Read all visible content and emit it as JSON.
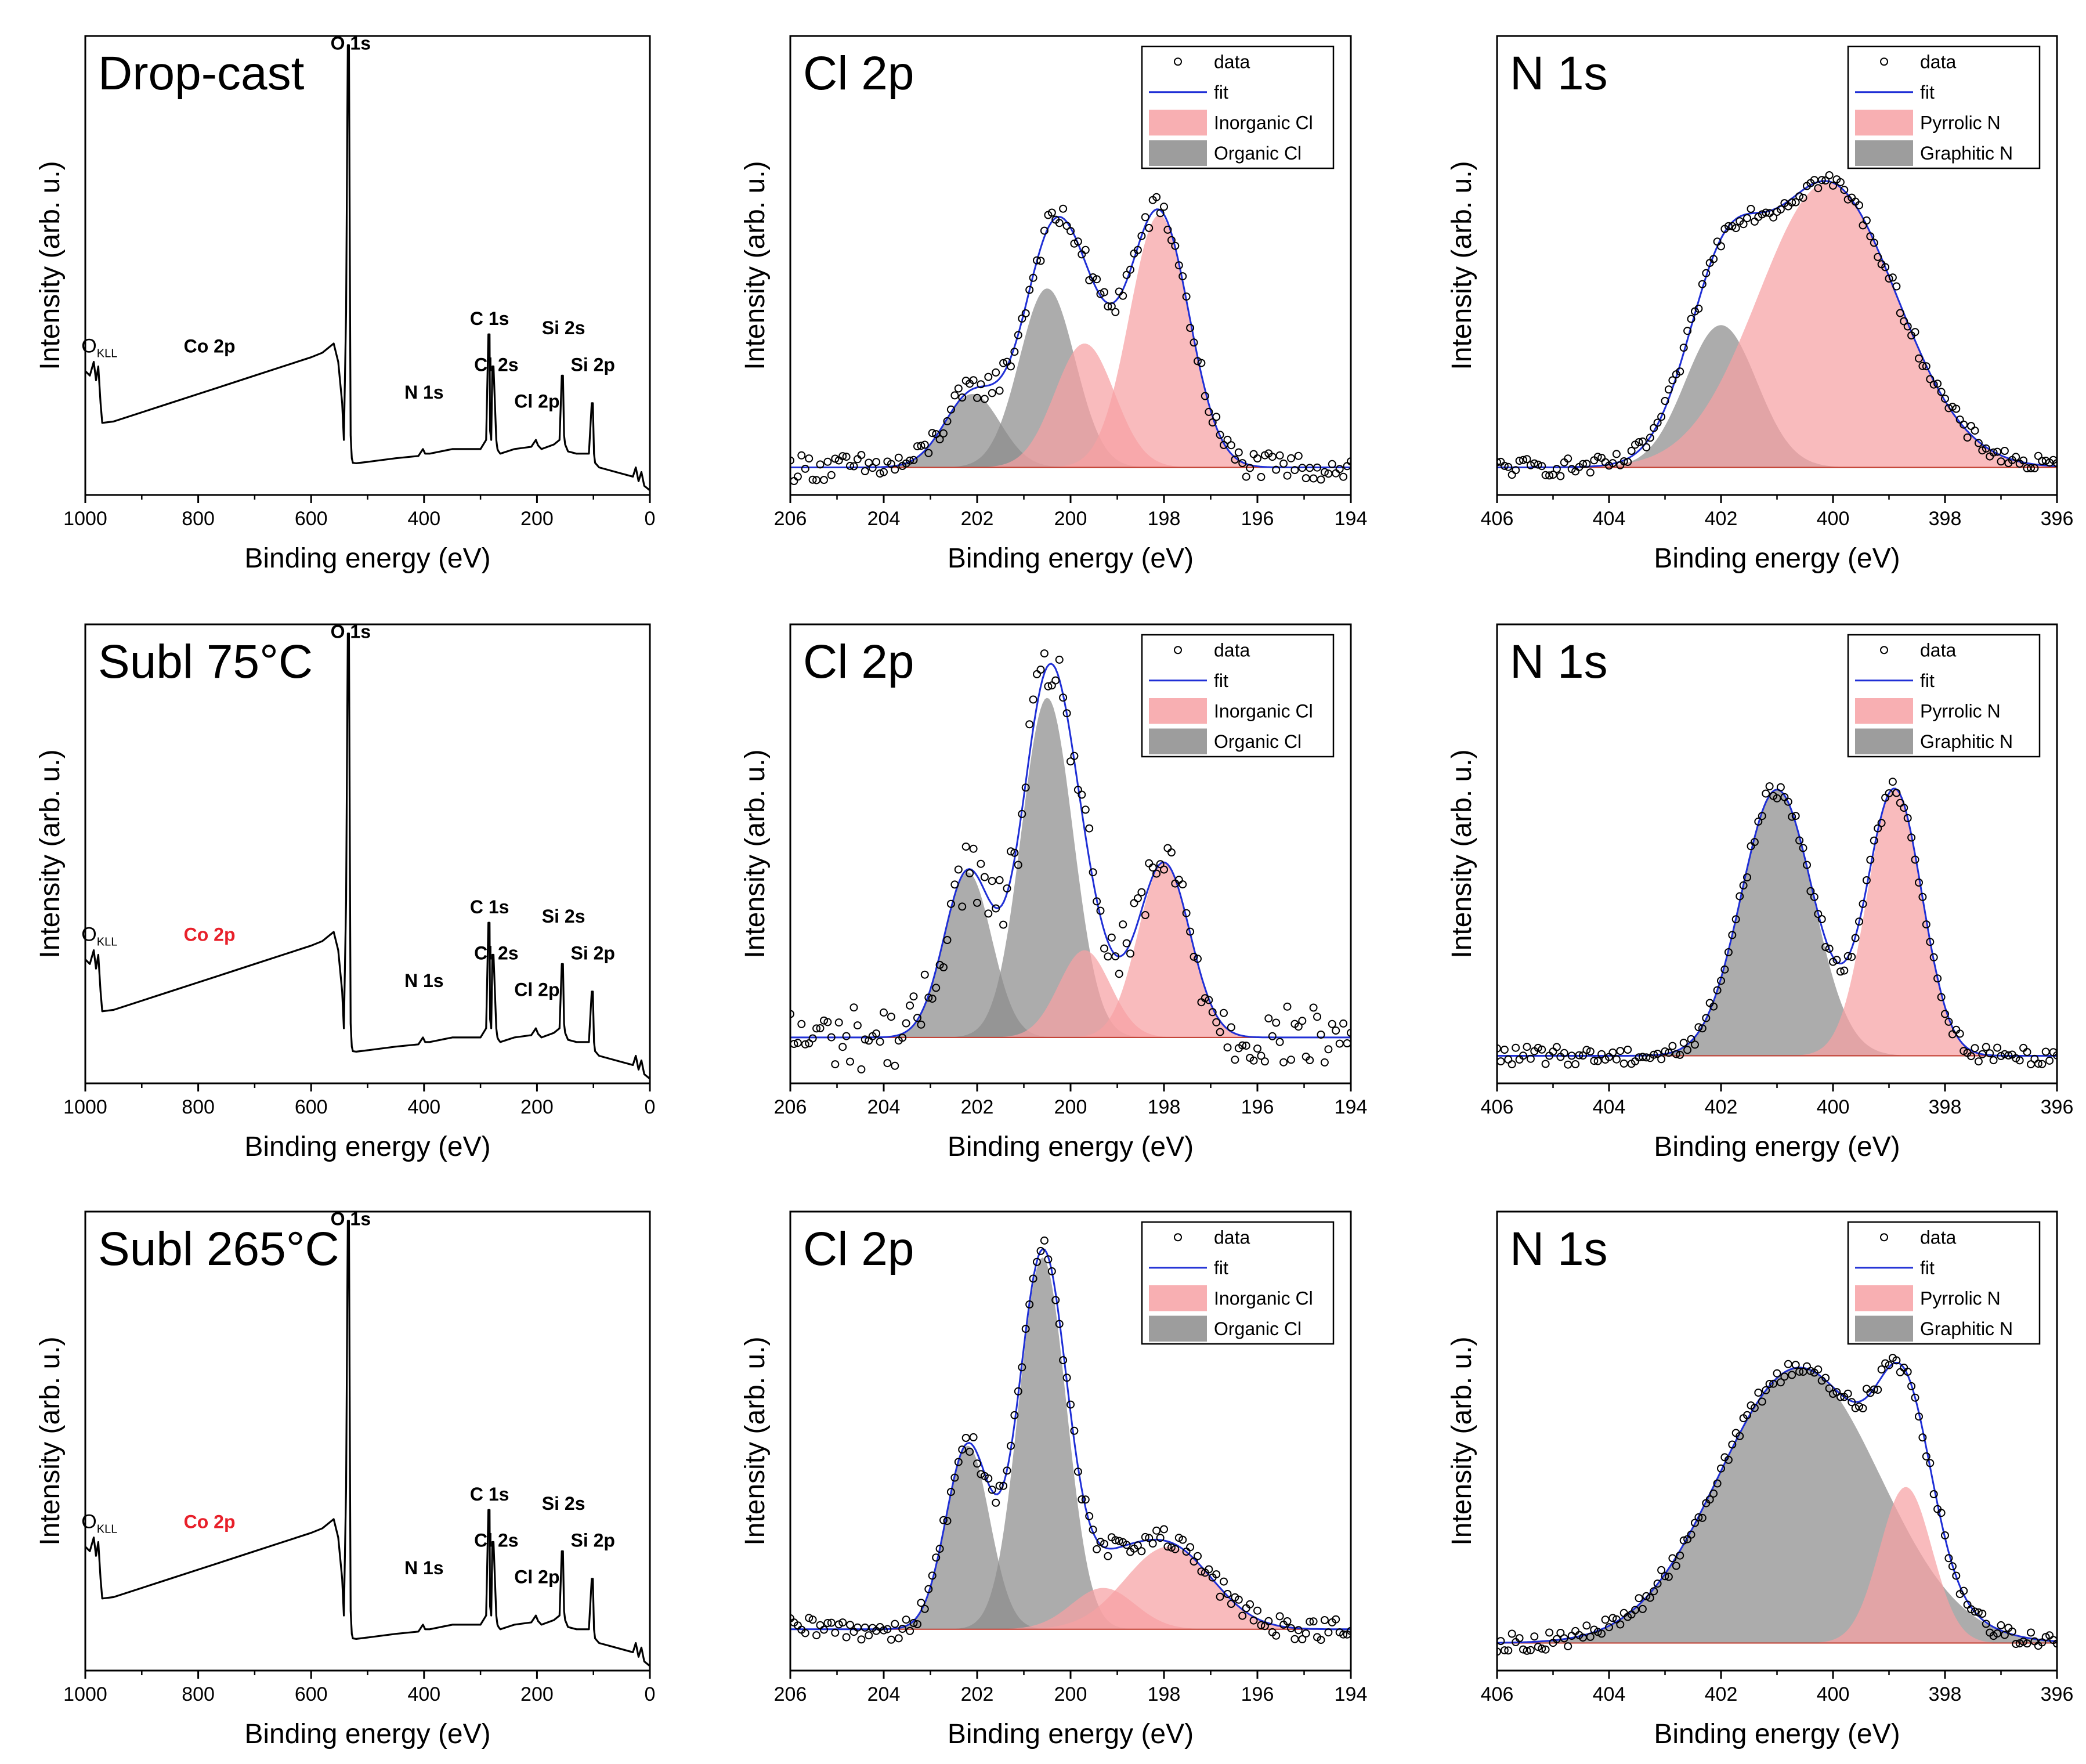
{
  "figure": {
    "background": "#ffffff",
    "colors": {
      "data_marker": "#000000",
      "fit_line": "#1f2fd6",
      "inorganic_fill": "#f7a1a4",
      "organic_fill": "#8c8c8c",
      "pyrrolic_fill": "#f7a1a4",
      "graphitic_fill": "#8c8c8c",
      "red_label": "#e8202a"
    }
  },
  "chart_data": [
    {
      "id": "survey-dropcast",
      "type": "line",
      "panel": "survey",
      "title": "Drop-cast",
      "xlabel": "Binding energy (eV)",
      "ylabel": "Intensity (arb. u.)",
      "xlim": [
        1000,
        0
      ],
      "ylim": [
        0,
        1
      ],
      "reversed_x": true,
      "xticks": [
        1000,
        800,
        600,
        400,
        200,
        0
      ],
      "curve": {
        "x": [
          1000,
          992,
          985,
          981,
          977,
          973,
          970,
          950,
          900,
          850,
          800,
          750,
          700,
          650,
          600,
          580,
          565,
          560,
          552,
          545,
          542,
          538,
          535,
          533,
          531,
          530,
          528,
          526,
          520,
          500,
          450,
          410,
          402,
          398,
          390,
          350,
          300,
          290,
          286,
          284,
          283,
          281,
          279,
          277,
          272,
          270,
          268,
          265,
          240,
          210,
          202,
          198,
          192,
          170,
          160,
          156,
          154,
          152,
          150,
          145,
          130,
          108,
          103,
          101,
          99,
          97,
          90,
          60,
          30,
          25,
          20,
          15,
          10,
          5,
          0
        ],
        "y": [
          0.27,
          0.26,
          0.29,
          0.25,
          0.28,
          0.2,
          0.157,
          0.16,
          0.18,
          0.2,
          0.22,
          0.24,
          0.26,
          0.28,
          0.3,
          0.31,
          0.325,
          0.33,
          0.29,
          0.2,
          0.12,
          0.4,
          0.98,
          0.98,
          0.4,
          0.13,
          0.08,
          0.07,
          0.069,
          0.072,
          0.08,
          0.085,
          0.1,
          0.09,
          0.09,
          0.1,
          0.1,
          0.12,
          0.35,
          0.35,
          0.14,
          0.12,
          0.28,
          0.28,
          0.12,
          0.1,
          0.095,
          0.09,
          0.1,
          0.105,
          0.12,
          0.108,
          0.1,
          0.11,
          0.12,
          0.26,
          0.26,
          0.13,
          0.11,
          0.095,
          0.09,
          0.09,
          0.2,
          0.2,
          0.09,
          0.07,
          0.06,
          0.05,
          0.04,
          0.06,
          0.03,
          0.05,
          0.02,
          0.015,
          0.01
        ]
      },
      "annotations": [
        {
          "text": "O 1s",
          "x": 530,
          "y": 0.96,
          "color": "#000000"
        },
        {
          "text": "C 1s",
          "x": 284,
          "y": 0.36,
          "color": "#000000"
        },
        {
          "text": "Cl 2s",
          "x": 272,
          "y": 0.26,
          "color": "#000000"
        },
        {
          "text": "Cl 2p",
          "x": 200,
          "y": 0.18,
          "color": "#000000"
        },
        {
          "text": "Si 2s",
          "x": 153,
          "y": 0.34,
          "color": "#000000"
        },
        {
          "text": "Si 2p",
          "x": 101,
          "y": 0.26,
          "color": "#000000"
        },
        {
          "text": "N 1s",
          "x": 400,
          "y": 0.2,
          "color": "#000000"
        },
        {
          "text": "Co 2p",
          "x": 780,
          "y": 0.3,
          "color": "#000000"
        },
        {
          "text": "O",
          "sub": "KLL",
          "x": 975,
          "y": 0.3,
          "color": "#000000"
        }
      ]
    },
    {
      "id": "cl2p-dropcast",
      "type": "scatter",
      "panel": "cl2p",
      "title": "Cl 2p",
      "xlabel": "Binding energy (eV)",
      "ylabel": "Intensity (arb. u.)",
      "xlim": [
        206,
        194
      ],
      "ylim": [
        0,
        1
      ],
      "reversed_x": true,
      "xticks": [
        206,
        204,
        202,
        200,
        198,
        196,
        194
      ],
      "baseline": 0.06,
      "components": [
        {
          "name": "Organic Cl",
          "peaks": [
            {
              "center": 202.1,
              "amp": 0.16,
              "fwhm": 1.4
            },
            {
              "center": 200.5,
              "amp": 0.39,
              "fwhm": 1.4
            }
          ]
        },
        {
          "name": "Inorganic Cl",
          "peaks": [
            {
              "center": 199.7,
              "amp": 0.27,
              "fwhm": 1.5
            },
            {
              "center": 198.1,
              "amp": 0.55,
              "fwhm": 1.5
            }
          ]
        }
      ],
      "data_noise": 0.03,
      "legend": {
        "position": "top-right",
        "entries": [
          "data",
          "fit",
          "Inorganic Cl",
          "Organic Cl"
        ]
      }
    },
    {
      "id": "n1s-dropcast",
      "type": "scatter",
      "panel": "n1s",
      "title": "N 1s",
      "xlabel": "Binding energy (eV)",
      "ylabel": "Intensity (arb. u.)",
      "xlim": [
        406,
        396
      ],
      "ylim": [
        0,
        1
      ],
      "reversed_x": true,
      "xticks": [
        406,
        404,
        402,
        400,
        398,
        396
      ],
      "baseline": 0.06,
      "components": [
        {
          "name": "Graphitic N",
          "peaks": [
            {
              "center": 402.0,
              "amp": 0.31,
              "fwhm": 1.5
            }
          ]
        },
        {
          "name": "Pyrrolic N",
          "peaks": [
            {
              "center": 400.1,
              "amp": 0.62,
              "fwhm": 2.9
            }
          ]
        }
      ],
      "data_noise": 0.02,
      "legend": {
        "position": "top-right",
        "entries": [
          "data",
          "fit",
          "Pyrrolic N",
          "Graphitic N"
        ]
      }
    },
    {
      "id": "survey-subl75",
      "type": "line",
      "panel": "survey",
      "title": "Subl 75°C",
      "xlabel": "Binding energy (eV)",
      "ylabel": "Intensity (arb. u.)",
      "xlim": [
        1000,
        0
      ],
      "ylim": [
        0,
        1
      ],
      "reversed_x": true,
      "xticks": [
        1000,
        800,
        600,
        400,
        200,
        0
      ],
      "curve": {
        "x": [
          1000,
          992,
          985,
          981,
          977,
          973,
          970,
          950,
          900,
          850,
          800,
          750,
          700,
          650,
          600,
          580,
          565,
          560,
          552,
          545,
          542,
          538,
          535,
          533,
          531,
          530,
          528,
          526,
          520,
          500,
          450,
          410,
          402,
          398,
          390,
          350,
          300,
          290,
          286,
          284,
          283,
          281,
          279,
          277,
          272,
          270,
          268,
          265,
          240,
          210,
          202,
          198,
          192,
          170,
          160,
          156,
          154,
          152,
          150,
          145,
          130,
          108,
          103,
          101,
          99,
          97,
          90,
          60,
          30,
          25,
          20,
          15,
          10,
          5,
          0
        ],
        "y": [
          0.27,
          0.26,
          0.29,
          0.25,
          0.28,
          0.2,
          0.157,
          0.16,
          0.18,
          0.2,
          0.22,
          0.24,
          0.26,
          0.28,
          0.3,
          0.31,
          0.325,
          0.33,
          0.29,
          0.2,
          0.12,
          0.4,
          0.98,
          0.98,
          0.4,
          0.13,
          0.08,
          0.07,
          0.069,
          0.072,
          0.08,
          0.085,
          0.1,
          0.09,
          0.09,
          0.1,
          0.1,
          0.12,
          0.35,
          0.35,
          0.14,
          0.12,
          0.28,
          0.28,
          0.12,
          0.1,
          0.095,
          0.09,
          0.1,
          0.105,
          0.12,
          0.108,
          0.1,
          0.11,
          0.12,
          0.26,
          0.26,
          0.13,
          0.11,
          0.095,
          0.09,
          0.09,
          0.2,
          0.2,
          0.09,
          0.07,
          0.06,
          0.05,
          0.04,
          0.06,
          0.03,
          0.05,
          0.02,
          0.015,
          0.01
        ]
      },
      "annotations": [
        {
          "text": "O 1s",
          "x": 530,
          "y": 0.96,
          "color": "#000000"
        },
        {
          "text": "C 1s",
          "x": 284,
          "y": 0.36,
          "color": "#000000"
        },
        {
          "text": "Cl 2s",
          "x": 272,
          "y": 0.26,
          "color": "#000000"
        },
        {
          "text": "Cl 2p",
          "x": 200,
          "y": 0.18,
          "color": "#000000"
        },
        {
          "text": "Si 2s",
          "x": 153,
          "y": 0.34,
          "color": "#000000"
        },
        {
          "text": "Si 2p",
          "x": 101,
          "y": 0.26,
          "color": "#000000"
        },
        {
          "text": "N 1s",
          "x": 400,
          "y": 0.2,
          "color": "#000000"
        },
        {
          "text": "Co 2p",
          "x": 780,
          "y": 0.3,
          "color": "#e8202a"
        },
        {
          "text": "O",
          "sub": "KLL",
          "x": 975,
          "y": 0.3,
          "color": "#000000"
        }
      ]
    },
    {
      "id": "cl2p-subl75",
      "type": "scatter",
      "panel": "cl2p",
      "title": "Cl 2p",
      "xlabel": "Binding energy (eV)",
      "ylabel": "Intensity (arb. u.)",
      "xlim": [
        206,
        194
      ],
      "ylim": [
        0,
        1
      ],
      "reversed_x": true,
      "xticks": [
        206,
        204,
        202,
        200,
        198,
        196,
        194
      ],
      "baseline": 0.1,
      "components": [
        {
          "name": "Organic Cl",
          "peaks": [
            {
              "center": 202.2,
              "amp": 0.36,
              "fwhm": 1.2
            },
            {
              "center": 200.5,
              "amp": 0.74,
              "fwhm": 1.3
            }
          ]
        },
        {
          "name": "Inorganic Cl",
          "peaks": [
            {
              "center": 199.7,
              "amp": 0.19,
              "fwhm": 1.3
            },
            {
              "center": 198.0,
              "amp": 0.38,
              "fwhm": 1.3
            }
          ]
        }
      ],
      "data_noise": 0.07,
      "legend": {
        "position": "top-right",
        "entries": [
          "data",
          "fit",
          "Inorganic Cl",
          "Organic Cl"
        ]
      }
    },
    {
      "id": "n1s-subl75",
      "type": "scatter",
      "panel": "n1s",
      "title": "N 1s",
      "xlabel": "Binding energy (eV)",
      "ylabel": "Intensity (arb. u.)",
      "xlim": [
        406,
        396
      ],
      "ylim": [
        0,
        1
      ],
      "reversed_x": true,
      "xticks": [
        406,
        404,
        402,
        400,
        398,
        396
      ],
      "baseline": 0.06,
      "components": [
        {
          "name": "Graphitic N",
          "peaks": [
            {
              "center": 401.0,
              "amp": 0.58,
              "fwhm": 1.5
            }
          ]
        },
        {
          "name": "Pyrrolic N",
          "peaks": [
            {
              "center": 398.9,
              "amp": 0.58,
              "fwhm": 1.15
            }
          ]
        }
      ],
      "data_noise": 0.02,
      "legend": {
        "position": "top-right",
        "entries": [
          "data",
          "fit",
          "Pyrrolic N",
          "Graphitic N"
        ]
      }
    },
    {
      "id": "survey-subl265",
      "type": "line",
      "panel": "survey",
      "title": "Subl 265°C",
      "xlabel": "Binding energy (eV)",
      "ylabel": "Intensity (arb. u.)",
      "xlim": [
        1000,
        0
      ],
      "ylim": [
        0,
        1
      ],
      "reversed_x": true,
      "xticks": [
        1000,
        800,
        600,
        400,
        200,
        0
      ],
      "curve": {
        "x": [
          1000,
          992,
          985,
          981,
          977,
          973,
          970,
          950,
          900,
          850,
          800,
          750,
          700,
          650,
          600,
          580,
          565,
          560,
          552,
          545,
          542,
          538,
          535,
          533,
          531,
          530,
          528,
          526,
          520,
          500,
          450,
          410,
          402,
          398,
          390,
          350,
          300,
          290,
          286,
          284,
          283,
          281,
          279,
          277,
          272,
          270,
          268,
          265,
          240,
          210,
          202,
          198,
          192,
          170,
          160,
          156,
          154,
          152,
          150,
          145,
          130,
          108,
          103,
          101,
          99,
          97,
          90,
          60,
          30,
          25,
          20,
          15,
          10,
          5,
          0
        ],
        "y": [
          0.27,
          0.26,
          0.29,
          0.25,
          0.28,
          0.2,
          0.157,
          0.16,
          0.18,
          0.2,
          0.22,
          0.24,
          0.26,
          0.28,
          0.3,
          0.31,
          0.325,
          0.33,
          0.29,
          0.2,
          0.12,
          0.4,
          0.98,
          0.98,
          0.4,
          0.13,
          0.08,
          0.07,
          0.069,
          0.072,
          0.08,
          0.085,
          0.1,
          0.09,
          0.09,
          0.1,
          0.1,
          0.12,
          0.35,
          0.35,
          0.14,
          0.12,
          0.28,
          0.28,
          0.12,
          0.1,
          0.095,
          0.09,
          0.1,
          0.105,
          0.12,
          0.108,
          0.1,
          0.11,
          0.12,
          0.26,
          0.26,
          0.13,
          0.11,
          0.095,
          0.09,
          0.09,
          0.2,
          0.2,
          0.09,
          0.07,
          0.06,
          0.05,
          0.04,
          0.06,
          0.03,
          0.05,
          0.02,
          0.015,
          0.01
        ]
      },
      "annotations": [
        {
          "text": "O 1s",
          "x": 530,
          "y": 0.96,
          "color": "#000000"
        },
        {
          "text": "C 1s",
          "x": 284,
          "y": 0.36,
          "color": "#000000"
        },
        {
          "text": "Cl 2s",
          "x": 272,
          "y": 0.26,
          "color": "#000000"
        },
        {
          "text": "Cl 2p",
          "x": 200,
          "y": 0.18,
          "color": "#000000"
        },
        {
          "text": "Si 2s",
          "x": 153,
          "y": 0.34,
          "color": "#000000"
        },
        {
          "text": "Si 2p",
          "x": 101,
          "y": 0.26,
          "color": "#000000"
        },
        {
          "text": "N 1s",
          "x": 400,
          "y": 0.2,
          "color": "#000000"
        },
        {
          "text": "Co 2p",
          "x": 780,
          "y": 0.3,
          "color": "#e8202a"
        },
        {
          "text": "O",
          "sub": "KLL",
          "x": 975,
          "y": 0.3,
          "color": "#000000"
        }
      ]
    },
    {
      "id": "cl2p-subl265",
      "type": "scatter",
      "panel": "cl2p",
      "title": "Cl 2p",
      "xlabel": "Binding energy (eV)",
      "ylabel": "Intensity (arb. u.)",
      "xlim": [
        206,
        194
      ],
      "ylim": [
        0,
        1
      ],
      "reversed_x": true,
      "xticks": [
        206,
        204,
        202,
        200,
        198,
        196,
        194
      ],
      "baseline": 0.09,
      "components": [
        {
          "name": "Organic Cl",
          "peaks": [
            {
              "center": 202.2,
              "amp": 0.4,
              "fwhm": 1.1
            },
            {
              "center": 200.6,
              "amp": 0.81,
              "fwhm": 1.2
            }
          ]
        },
        {
          "name": "Inorganic Cl",
          "peaks": [
            {
              "center": 199.3,
              "amp": 0.09,
              "fwhm": 1.6
            },
            {
              "center": 197.9,
              "amp": 0.18,
              "fwhm": 2.2
            }
          ]
        }
      ],
      "data_noise": 0.025,
      "legend": {
        "position": "top-right",
        "entries": [
          "data",
          "fit",
          "Inorganic Cl",
          "Organic Cl"
        ]
      }
    },
    {
      "id": "n1s-subl265",
      "type": "scatter",
      "panel": "n1s",
      "title": "N 1s",
      "xlabel": "Binding energy (eV)",
      "ylabel": "Intensity (arb. u.)",
      "xlim": [
        406,
        396
      ],
      "ylim": [
        0,
        1
      ],
      "reversed_x": true,
      "xticks": [
        406,
        404,
        402,
        400,
        398,
        396
      ],
      "baseline": 0.06,
      "components": [
        {
          "name": "Graphitic N",
          "peaks": [
            {
              "center": 400.6,
              "amp": 0.6,
              "fwhm": 3.4
            }
          ]
        },
        {
          "name": "Pyrrolic N",
          "peaks": [
            {
              "center": 398.7,
              "amp": 0.34,
              "fwhm": 1.1
            }
          ]
        }
      ],
      "data_noise": 0.02,
      "legend": {
        "position": "top-right",
        "entries": [
          "data",
          "fit",
          "Pyrrolic N",
          "Graphitic N"
        ]
      }
    }
  ]
}
